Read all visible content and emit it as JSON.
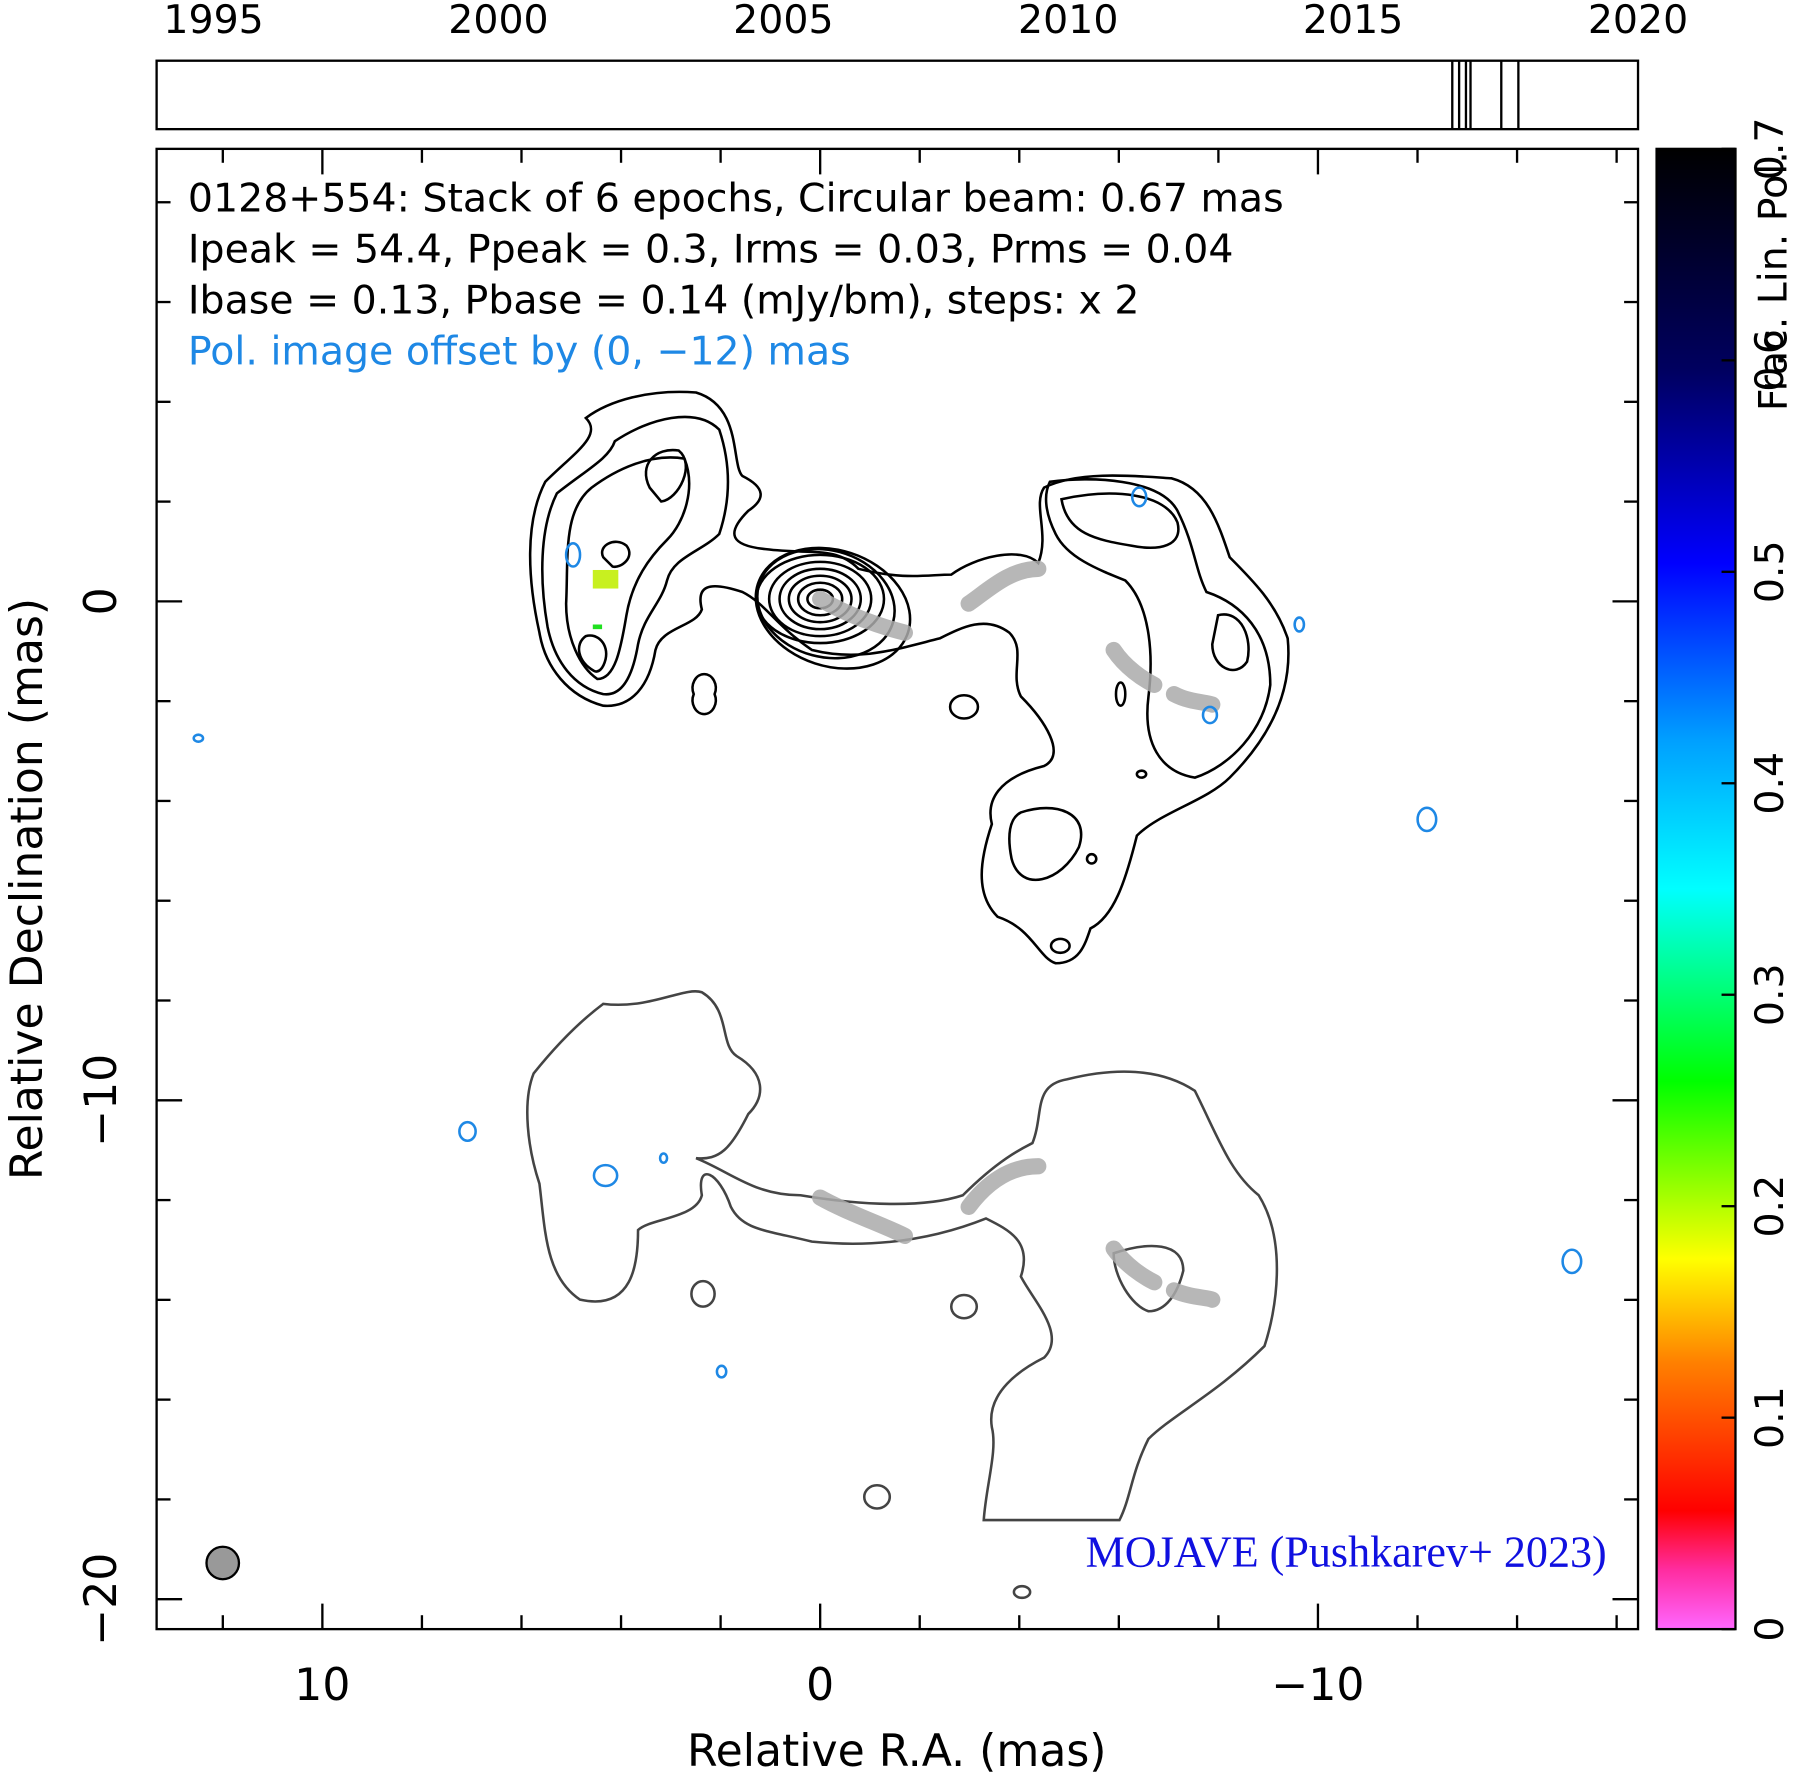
{
  "chart_data": {
    "type": "contour",
    "title": "0128+554: Stack of 6 epochs, Circular beam: 0.67 mas",
    "subtitle_lines": [
      "Ipeak = 54.4, Ppeak = 0.3, Irms = 0.03, Prms = 0.04",
      "Ibase = 0.13, Pbase = 0.14 (mJy/bm), steps: x 2"
    ],
    "pol_note": "Pol. image offset by (0, −12) mas",
    "credit": "MOJAVE (Pushkarev+ 2023)",
    "xlabel": "Relative R.A. (mas)",
    "ylabel": "Relative Declination (mas)",
    "xlim": [
      13.33,
      -16.43
    ],
    "xticks": [
      10,
      0,
      {
        "value": -10,
        "label": "−10"
      }
    ],
    "xminor_ticks": [
      12,
      8,
      6,
      4,
      2,
      -2,
      -4,
      -6,
      -8,
      -12,
      -14,
      -16
    ],
    "ylim": [
      -20.6,
      9.07
    ],
    "yticks": [
      {
        "value": -20,
        "label": "−20"
      },
      {
        "value": -10,
        "label": "−10"
      },
      0
    ],
    "yminor_ticks": [
      -18,
      -16,
      -14,
      -12,
      -8,
      -6,
      -4,
      -2,
      2,
      4,
      6,
      8
    ],
    "timeline": {
      "xlim": [
        1994,
        2020
      ],
      "xticks": [
        1995,
        2000,
        2005,
        2010,
        2015,
        2020
      ],
      "epochs": [
        2016.74,
        2016.86,
        2016.98,
        2017.06,
        2017.6,
        2017.9
      ]
    },
    "colorbar": {
      "label": "Frac. Lin. Pol.",
      "lim": [
        0,
        0.7
      ],
      "ticks": [
        0,
        0.1,
        0.2,
        0.3,
        0.4,
        0.5,
        0.6,
        0.7
      ]
    }
  }
}
